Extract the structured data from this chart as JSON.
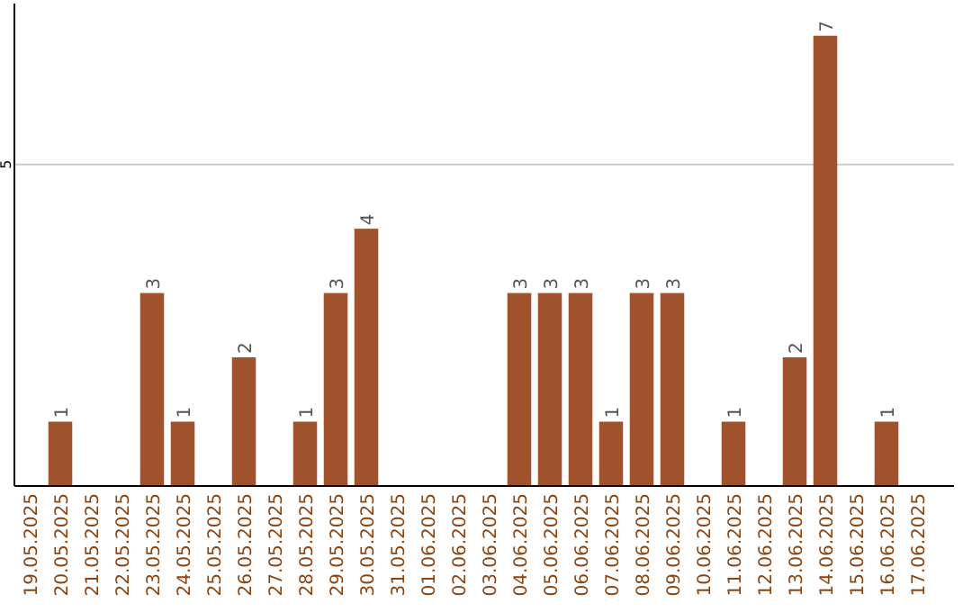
{
  "chart_data": {
    "type": "bar",
    "categories": [
      "19.05.2025",
      "20.05.2025",
      "21.05.2025",
      "22.05.2025",
      "23.05.2025",
      "24.05.2025",
      "25.05.2025",
      "26.05.2025",
      "27.05.2025",
      "28.05.2025",
      "29.05.2025",
      "30.05.2025",
      "31.05.2025",
      "01.06.2025",
      "02.06.2025",
      "03.06.2025",
      "04.06.2025",
      "05.06.2025",
      "06.06.2025",
      "07.06.2025",
      "08.06.2025",
      "09.06.2025",
      "10.06.2025",
      "11.06.2025",
      "12.06.2025",
      "13.06.2025",
      "14.06.2025",
      "15.06.2025",
      "16.06.2025",
      "17.06.2025"
    ],
    "values": [
      0,
      1,
      0,
      0,
      3,
      1,
      0,
      2,
      0,
      1,
      3,
      4,
      0,
      0,
      0,
      0,
      3,
      3,
      3,
      1,
      3,
      3,
      0,
      1,
      0,
      2,
      7,
      0,
      1,
      0
    ],
    "value_labels": [
      null,
      "1",
      null,
      null,
      "3",
      "1",
      null,
      "2",
      null,
      "1",
      "3",
      "4",
      null,
      null,
      null,
      null,
      "3",
      "3",
      "3",
      "1",
      "3",
      "3",
      null,
      "1",
      null,
      "2",
      "7",
      null,
      "1",
      null
    ],
    "color": "#a0522d",
    "ylim": [
      0,
      7.5
    ],
    "yticks": [
      5
    ],
    "grid": "y"
  }
}
